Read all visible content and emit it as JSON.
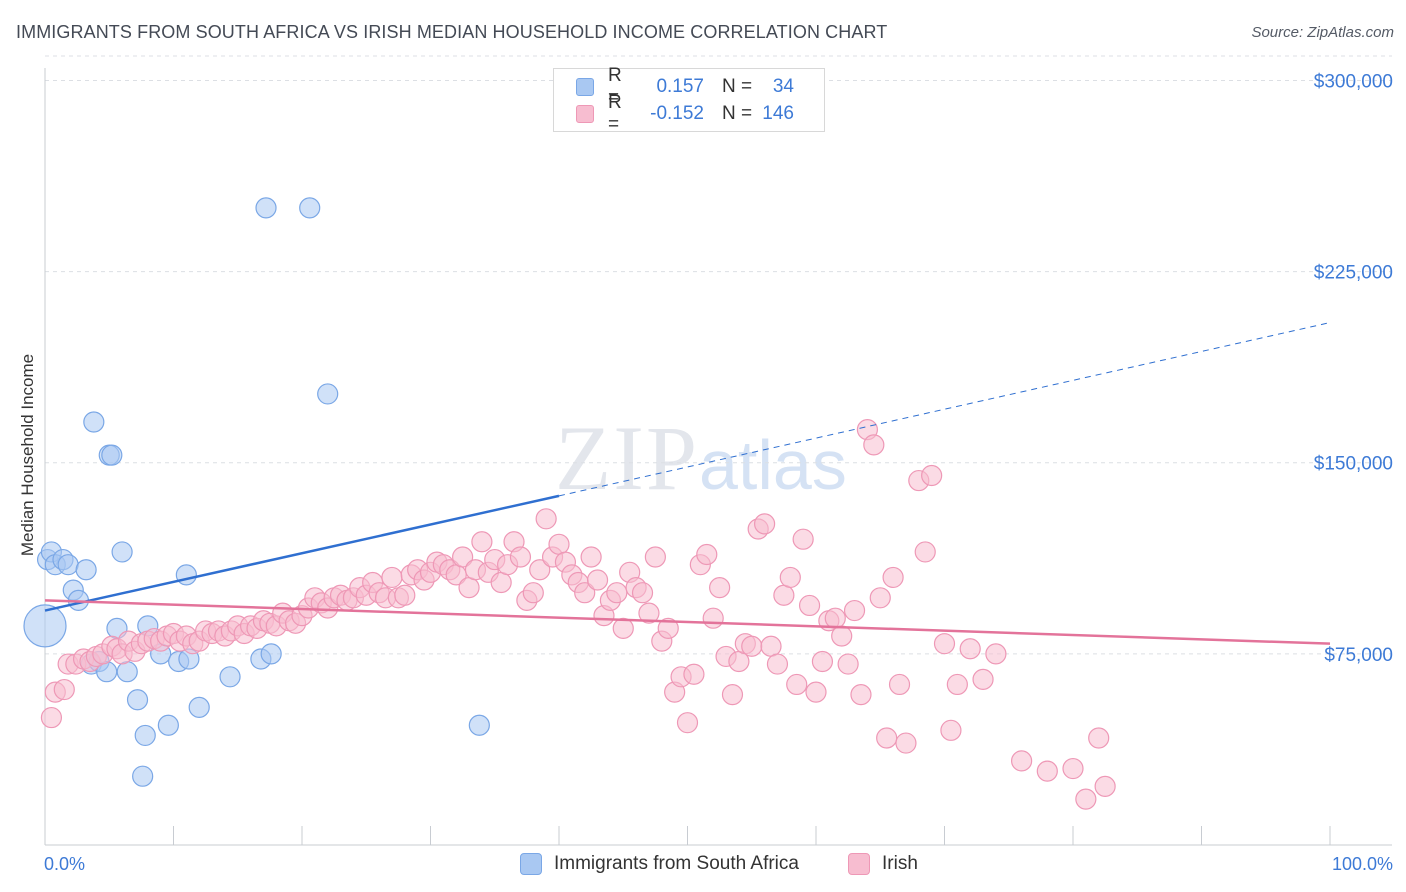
{
  "title": "IMMIGRANTS FROM SOUTH AFRICA VS IRISH MEDIAN HOUSEHOLD INCOME CORRELATION CHART",
  "source": "Source: ZipAtlas.com",
  "watermark": {
    "zip": "ZIP",
    "atlas": "atlas"
  },
  "legend_top": {
    "rows": [
      {
        "r_label": "R =",
        "r_value": "0.157",
        "n_label": "N =",
        "n_value": "34",
        "color": "#a9c8f2",
        "border": "#7aa7e6"
      },
      {
        "r_label": "R =",
        "r_value": "-0.152",
        "n_label": "N =",
        "n_value": "146",
        "color": "#f7bdd0",
        "border": "#ee98b6"
      }
    ]
  },
  "legend_bottom": [
    {
      "label": "Immigrants from South Africa",
      "color": "#a9c8f2",
      "border": "#7aa7e6"
    },
    {
      "label": "Irish",
      "color": "#f7bdd0",
      "border": "#ee98b6"
    }
  ],
  "chart_data": {
    "type": "scatter",
    "title": "IMMIGRANTS FROM SOUTH AFRICA VS IRISH MEDIAN HOUSEHOLD INCOME CORRELATION CHART",
    "xlabel": "",
    "ylabel": "Median Household Income",
    "xlim": [
      0,
      100
    ],
    "ylim": [
      0,
      310000
    ],
    "x_tick_labels": [
      "0.0%",
      "100.0%"
    ],
    "y_ticks": [
      75000,
      150000,
      225000,
      300000
    ],
    "y_tick_labels": [
      "$75,000",
      "$150,000",
      "$225,000",
      "$300,000"
    ],
    "grid": "horizontal dashed",
    "legend": "top-center",
    "series": [
      {
        "name": "Immigrants from South Africa",
        "color": "#a9c8f2",
        "stroke": "#7aa7e6",
        "trend": {
          "x0": 0,
          "y0": 92000,
          "x1": 40,
          "y1": 137000,
          "x_dash_end": 100,
          "y_dash_end": 205000,
          "color": "#2f6fd0"
        },
        "points": [
          [
            0.2,
            112000
          ],
          [
            0.5,
            115000
          ],
          [
            0.8,
            110000
          ],
          [
            1.4,
            112000
          ],
          [
            1.8,
            110000
          ],
          [
            2.2,
            100000
          ],
          [
            2.6,
            96000
          ],
          [
            3.2,
            108000
          ],
          [
            3.6,
            71000
          ],
          [
            3.8,
            166000
          ],
          [
            4.2,
            72000
          ],
          [
            4.8,
            68000
          ],
          [
            5.0,
            153000
          ],
          [
            5.2,
            153000
          ],
          [
            5.6,
            85000
          ],
          [
            6.0,
            115000
          ],
          [
            6.4,
            68000
          ],
          [
            7.2,
            57000
          ],
          [
            7.6,
            27000
          ],
          [
            7.8,
            43000
          ],
          [
            8.0,
            86000
          ],
          [
            9.0,
            75000
          ],
          [
            9.6,
            47000
          ],
          [
            10.4,
            72000
          ],
          [
            11.0,
            106000
          ],
          [
            11.2,
            73000
          ],
          [
            12.0,
            54000
          ],
          [
            14.4,
            66000
          ],
          [
            16.8,
            73000
          ],
          [
            17.6,
            75000
          ],
          [
            17.2,
            250000
          ],
          [
            20.6,
            250000
          ],
          [
            22.0,
            177000
          ],
          [
            33.8,
            47000
          ]
        ]
      },
      {
        "name": "Irish",
        "color": "#f7bdd0",
        "stroke": "#ee98b6",
        "trend": {
          "x0": 0,
          "y0": 96000,
          "x1": 100,
          "y1": 79000,
          "color": "#e3739a"
        },
        "points": [
          [
            0.5,
            50000
          ],
          [
            0.8,
            60000
          ],
          [
            1.5,
            61000
          ],
          [
            1.8,
            71000
          ],
          [
            2.4,
            71000
          ],
          [
            3.0,
            73000
          ],
          [
            3.5,
            72000
          ],
          [
            4.0,
            74000
          ],
          [
            4.5,
            75000
          ],
          [
            5.2,
            78000
          ],
          [
            5.6,
            77000
          ],
          [
            6.0,
            75000
          ],
          [
            6.5,
            80000
          ],
          [
            7.0,
            76000
          ],
          [
            7.5,
            79000
          ],
          [
            8.0,
            80000
          ],
          [
            8.5,
            81000
          ],
          [
            9.0,
            80000
          ],
          [
            9.5,
            82000
          ],
          [
            10.0,
            83000
          ],
          [
            10.5,
            80000
          ],
          [
            11.0,
            82000
          ],
          [
            11.5,
            79000
          ],
          [
            12.0,
            80000
          ],
          [
            12.5,
            84000
          ],
          [
            13.0,
            83000
          ],
          [
            13.5,
            84000
          ],
          [
            14.0,
            82000
          ],
          [
            14.5,
            84000
          ],
          [
            15.0,
            86000
          ],
          [
            15.5,
            83000
          ],
          [
            16.0,
            86000
          ],
          [
            16.5,
            85000
          ],
          [
            17.0,
            88000
          ],
          [
            17.5,
            87000
          ],
          [
            18.0,
            86000
          ],
          [
            18.5,
            91000
          ],
          [
            19.0,
            88000
          ],
          [
            19.5,
            87000
          ],
          [
            20.0,
            90000
          ],
          [
            20.5,
            93000
          ],
          [
            21.0,
            97000
          ],
          [
            21.5,
            95000
          ],
          [
            22.0,
            93000
          ],
          [
            22.5,
            97000
          ],
          [
            23.0,
            98000
          ],
          [
            23.5,
            96000
          ],
          [
            24.0,
            97000
          ],
          [
            24.5,
            101000
          ],
          [
            25.0,
            98000
          ],
          [
            25.5,
            103000
          ],
          [
            26.0,
            99000
          ],
          [
            26.5,
            97000
          ],
          [
            27.0,
            105000
          ],
          [
            27.5,
            97000
          ],
          [
            28.0,
            98000
          ],
          [
            28.5,
            106000
          ],
          [
            29.0,
            108000
          ],
          [
            29.5,
            104000
          ],
          [
            30.0,
            107000
          ],
          [
            30.5,
            111000
          ],
          [
            31.0,
            110000
          ],
          [
            31.5,
            108000
          ],
          [
            32.0,
            106000
          ],
          [
            32.5,
            113000
          ],
          [
            33.0,
            101000
          ],
          [
            33.5,
            108000
          ],
          [
            34.0,
            119000
          ],
          [
            34.5,
            107000
          ],
          [
            35.0,
            112000
          ],
          [
            35.5,
            103000
          ],
          [
            36.0,
            110000
          ],
          [
            36.5,
            119000
          ],
          [
            37.0,
            113000
          ],
          [
            37.5,
            96000
          ],
          [
            38.0,
            99000
          ],
          [
            38.5,
            108000
          ],
          [
            39.0,
            128000
          ],
          [
            39.5,
            113000
          ],
          [
            40.0,
            118000
          ],
          [
            40.5,
            111000
          ],
          [
            41.0,
            106000
          ],
          [
            41.5,
            103000
          ],
          [
            42.0,
            99000
          ],
          [
            42.5,
            113000
          ],
          [
            43.0,
            104000
          ],
          [
            43.5,
            90000
          ],
          [
            44.0,
            96000
          ],
          [
            44.5,
            99000
          ],
          [
            45.0,
            85000
          ],
          [
            45.5,
            107000
          ],
          [
            46.0,
            101000
          ],
          [
            46.5,
            99000
          ],
          [
            47.0,
            91000
          ],
          [
            47.5,
            113000
          ],
          [
            48.0,
            80000
          ],
          [
            48.5,
            85000
          ],
          [
            49.0,
            60000
          ],
          [
            49.5,
            66000
          ],
          [
            50.0,
            48000
          ],
          [
            50.5,
            67000
          ],
          [
            51.0,
            110000
          ],
          [
            51.5,
            114000
          ],
          [
            52.0,
            89000
          ],
          [
            52.5,
            101000
          ],
          [
            53.0,
            74000
          ],
          [
            53.5,
            59000
          ],
          [
            54.0,
            72000
          ],
          [
            54.5,
            79000
          ],
          [
            55.0,
            78000
          ],
          [
            55.5,
            124000
          ],
          [
            56.0,
            126000
          ],
          [
            56.5,
            78000
          ],
          [
            57.0,
            71000
          ],
          [
            57.5,
            98000
          ],
          [
            58.0,
            105000
          ],
          [
            58.5,
            63000
          ],
          [
            59.0,
            120000
          ],
          [
            59.5,
            94000
          ],
          [
            60.0,
            60000
          ],
          [
            60.5,
            72000
          ],
          [
            61.0,
            88000
          ],
          [
            61.5,
            89000
          ],
          [
            62.0,
            82000
          ],
          [
            62.5,
            71000
          ],
          [
            63.0,
            92000
          ],
          [
            63.5,
            59000
          ],
          [
            64.0,
            163000
          ],
          [
            64.5,
            157000
          ],
          [
            65.0,
            97000
          ],
          [
            65.5,
            42000
          ],
          [
            66.0,
            105000
          ],
          [
            66.5,
            63000
          ],
          [
            67.0,
            40000
          ],
          [
            68.0,
            143000
          ],
          [
            68.5,
            115000
          ],
          [
            69.0,
            145000
          ],
          [
            70.0,
            79000
          ],
          [
            70.5,
            45000
          ],
          [
            71.0,
            63000
          ],
          [
            72.0,
            77000
          ],
          [
            73.0,
            65000
          ],
          [
            74.0,
            75000
          ],
          [
            76.0,
            33000
          ],
          [
            78.0,
            29000
          ],
          [
            80.0,
            30000
          ],
          [
            81.0,
            18000
          ],
          [
            82.0,
            42000
          ],
          [
            82.5,
            23000
          ]
        ]
      }
    ]
  }
}
